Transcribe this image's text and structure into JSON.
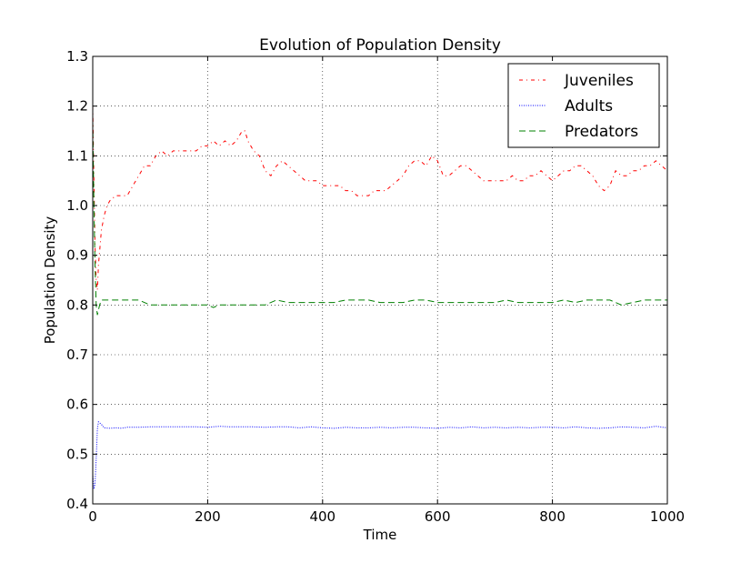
{
  "chart_data": {
    "type": "line",
    "title": "Evolution of Population Density",
    "xlabel": "Time",
    "ylabel": "Population Density",
    "xlim": [
      0,
      1000
    ],
    "ylim": [
      0.4,
      1.3
    ],
    "xticks": [
      0,
      200,
      400,
      600,
      800,
      1000
    ],
    "xtick_labels": [
      "0",
      "200",
      "400",
      "600",
      "800",
      "1000"
    ],
    "yticks": [
      0.4,
      0.5,
      0.6,
      0.7,
      0.8,
      0.9,
      1.0,
      1.1,
      1.2,
      1.3
    ],
    "ytick_labels": [
      "0.4",
      "0.5",
      "0.6",
      "0.7",
      "0.8",
      "0.9",
      "1.0",
      "1.1",
      "1.2",
      "1.3"
    ],
    "grid": true,
    "legend_position": "top-right",
    "series": [
      {
        "name": "Juveniles",
        "color": "#ff0000",
        "style": "dashdot",
        "x": [
          0,
          2,
          4,
          6,
          8,
          10,
          15,
          20,
          25,
          30,
          40,
          50,
          60,
          70,
          80,
          90,
          100,
          110,
          120,
          130,
          140,
          150,
          160,
          170,
          180,
          190,
          200,
          210,
          220,
          230,
          240,
          250,
          260,
          265,
          270,
          280,
          290,
          300,
          310,
          320,
          330,
          340,
          350,
          360,
          370,
          380,
          390,
          400,
          410,
          420,
          430,
          440,
          450,
          460,
          470,
          480,
          490,
          500,
          510,
          520,
          530,
          540,
          550,
          560,
          570,
          580,
          590,
          600,
          610,
          620,
          630,
          640,
          650,
          660,
          670,
          680,
          690,
          700,
          710,
          720,
          730,
          740,
          750,
          760,
          770,
          780,
          790,
          800,
          810,
          820,
          830,
          840,
          850,
          860,
          870,
          880,
          890,
          900,
          910,
          920,
          930,
          940,
          950,
          960,
          970,
          980,
          990,
          1000
        ],
        "y": [
          1.2,
          1.05,
          0.92,
          0.85,
          0.83,
          0.88,
          0.95,
          0.98,
          1.0,
          1.01,
          1.02,
          1.02,
          1.02,
          1.04,
          1.06,
          1.08,
          1.08,
          1.1,
          1.11,
          1.1,
          1.11,
          1.11,
          1.11,
          1.11,
          1.11,
          1.12,
          1.12,
          1.13,
          1.12,
          1.13,
          1.12,
          1.13,
          1.15,
          1.15,
          1.13,
          1.11,
          1.1,
          1.07,
          1.06,
          1.08,
          1.09,
          1.08,
          1.07,
          1.06,
          1.05,
          1.05,
          1.05,
          1.04,
          1.04,
          1.04,
          1.04,
          1.03,
          1.03,
          1.02,
          1.02,
          1.02,
          1.03,
          1.03,
          1.03,
          1.04,
          1.05,
          1.06,
          1.08,
          1.09,
          1.09,
          1.08,
          1.1,
          1.09,
          1.06,
          1.06,
          1.07,
          1.08,
          1.08,
          1.07,
          1.06,
          1.05,
          1.05,
          1.05,
          1.05,
          1.05,
          1.06,
          1.05,
          1.05,
          1.06,
          1.06,
          1.07,
          1.06,
          1.05,
          1.06,
          1.07,
          1.07,
          1.08,
          1.08,
          1.07,
          1.06,
          1.04,
          1.03,
          1.04,
          1.07,
          1.06,
          1.06,
          1.07,
          1.07,
          1.08,
          1.08,
          1.09,
          1.08,
          1.07
        ]
      },
      {
        "name": "Adults",
        "color": "#0000ff",
        "style": "dotted",
        "x": [
          0,
          2,
          4,
          6,
          8,
          10,
          15,
          20,
          30,
          40,
          50,
          60,
          80,
          100,
          120,
          140,
          160,
          180,
          200,
          220,
          240,
          260,
          280,
          300,
          320,
          340,
          360,
          380,
          400,
          420,
          440,
          460,
          480,
          500,
          520,
          540,
          560,
          580,
          600,
          620,
          640,
          660,
          680,
          700,
          720,
          740,
          760,
          780,
          800,
          820,
          840,
          860,
          880,
          900,
          920,
          940,
          960,
          980,
          1000
        ],
        "y": [
          0.46,
          0.43,
          0.44,
          0.49,
          0.55,
          0.565,
          0.56,
          0.553,
          0.552,
          0.553,
          0.552,
          0.554,
          0.554,
          0.555,
          0.555,
          0.555,
          0.555,
          0.555,
          0.554,
          0.556,
          0.555,
          0.555,
          0.555,
          0.554,
          0.555,
          0.555,
          0.553,
          0.555,
          0.553,
          0.552,
          0.554,
          0.553,
          0.553,
          0.554,
          0.553,
          0.554,
          0.554,
          0.553,
          0.552,
          0.554,
          0.553,
          0.555,
          0.553,
          0.554,
          0.553,
          0.554,
          0.553,
          0.554,
          0.554,
          0.553,
          0.555,
          0.553,
          0.552,
          0.553,
          0.555,
          0.554,
          0.553,
          0.556,
          0.553
        ]
      },
      {
        "name": "Predators",
        "color": "#008000",
        "style": "dashed",
        "x": [
          0,
          2,
          4,
          6,
          8,
          10,
          12,
          15,
          20,
          30,
          40,
          50,
          60,
          80,
          100,
          120,
          140,
          160,
          180,
          200,
          210,
          220,
          240,
          260,
          280,
          300,
          320,
          340,
          360,
          380,
          400,
          420,
          440,
          460,
          470,
          480,
          500,
          520,
          540,
          560,
          580,
          600,
          620,
          640,
          660,
          680,
          700,
          720,
          740,
          760,
          780,
          800,
          820,
          840,
          860,
          880,
          900,
          920,
          940,
          960,
          980,
          1000
        ],
        "y": [
          1.17,
          1.0,
          0.88,
          0.8,
          0.78,
          0.79,
          0.8,
          0.81,
          0.81,
          0.81,
          0.81,
          0.81,
          0.81,
          0.81,
          0.8,
          0.8,
          0.8,
          0.8,
          0.8,
          0.8,
          0.795,
          0.8,
          0.8,
          0.8,
          0.8,
          0.8,
          0.81,
          0.805,
          0.805,
          0.805,
          0.805,
          0.805,
          0.81,
          0.81,
          0.81,
          0.81,
          0.805,
          0.805,
          0.805,
          0.81,
          0.81,
          0.805,
          0.805,
          0.805,
          0.805,
          0.805,
          0.805,
          0.81,
          0.805,
          0.805,
          0.805,
          0.805,
          0.81,
          0.805,
          0.81,
          0.81,
          0.81,
          0.8,
          0.805,
          0.81,
          0.81,
          0.81
        ]
      }
    ]
  }
}
